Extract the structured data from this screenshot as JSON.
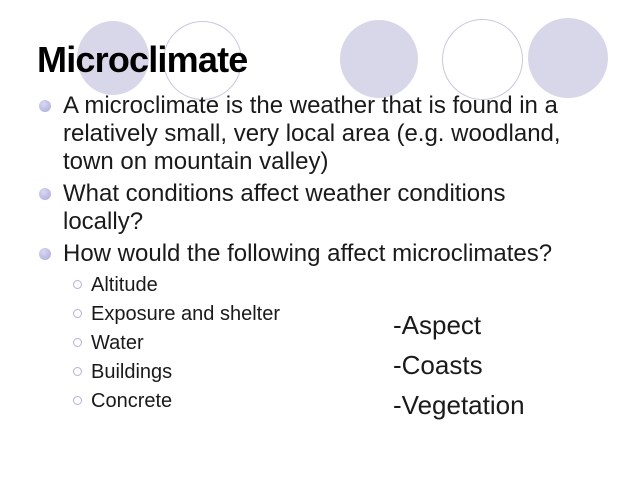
{
  "slide": {
    "title": "Microclimate",
    "bullets": [
      {
        "lines": [
          "A microclimate is the weather that is found in a",
          "relatively small, very local area (e.g. woodland,",
          "town on mountain valley)"
        ]
      },
      {
        "lines": [
          "What conditions affect weather conditions",
          "locally?"
        ]
      },
      {
        "lines": [
          "How would the following affect microclimates?"
        ]
      }
    ],
    "sub_bullets": [
      "Altitude",
      "Exposure and shelter",
      "Water",
      "Buildings",
      "Concrete"
    ],
    "side_items": [
      "-Aspect",
      "-Coasts",
      "-Vegetation"
    ],
    "colors": {
      "background": "#ffffff",
      "title_text": "#000000",
      "body_text": "#1a1a1a",
      "decor_circle_fill": "#d8d6e9",
      "decor_circle_outline": "#c8c8dd",
      "bullet_fill": "#bcbbe3",
      "sub_bullet_ring": "#b2b1da"
    }
  }
}
